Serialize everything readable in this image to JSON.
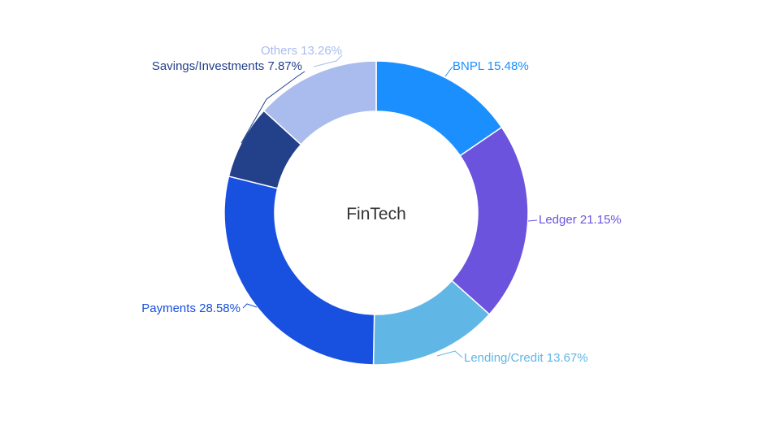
{
  "chart_data": {
    "type": "pie",
    "variant": "donut",
    "center_label": "FinTech",
    "series": [
      {
        "name": "BNPL",
        "value": 15.48,
        "label": "BNPL 15.48%",
        "color": "#1b8ffd"
      },
      {
        "name": "Ledger",
        "value": 21.15,
        "label": "Ledger 21.15%",
        "color": "#6c53dd"
      },
      {
        "name": "Lending/Credit",
        "value": 13.67,
        "label": "Lending/Credit 13.67%",
        "color": "#60b7e5"
      },
      {
        "name": "Payments",
        "value": 28.58,
        "label": "Payments 28.58%",
        "color": "#1850e0"
      },
      {
        "name": "Savings/Investments",
        "value": 7.87,
        "label": "Savings/Investments 7.87%",
        "color": "#23408a"
      },
      {
        "name": "Others",
        "value": 13.26,
        "label": "Others 13.26%",
        "color": "#aabcee"
      }
    ],
    "start_angle": "12 o'clock",
    "direction": "clockwise",
    "legend": "none"
  }
}
